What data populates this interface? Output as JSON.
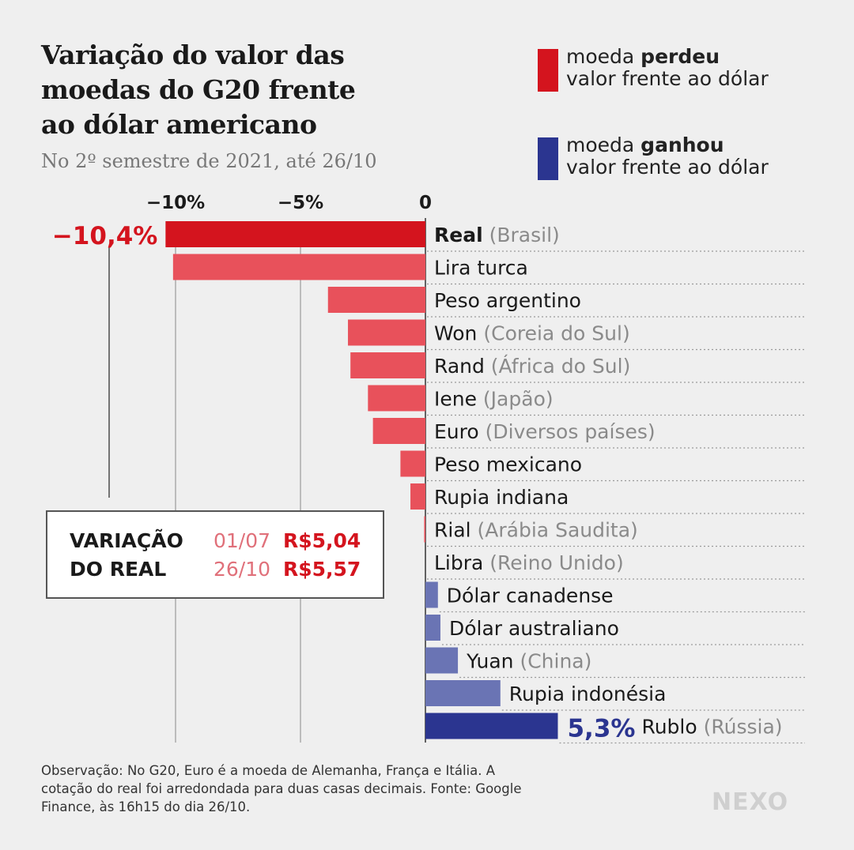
{
  "title_lines": [
    "Variação do valor das",
    "moedas do G20 frente",
    "ao dólar americano"
  ],
  "subtitle": "No 2º semestre de 2021, até 26/10",
  "legend": {
    "lost": {
      "prefix": "moeda ",
      "bold": "perdeu",
      "line2": "valor frente ao dólar",
      "color": "#d4141e"
    },
    "gained": {
      "prefix": "moeda ",
      "bold": "ganhou",
      "line2": "valor frente ao dólar",
      "color": "#2b3590"
    }
  },
  "callout": {
    "label_line1": "VARIAÇÃO",
    "label_line2": "DO REAL",
    "date1": "01/07",
    "price1": "R$5,04",
    "date2": "26/10",
    "price2": "R$5,57"
  },
  "note": "Observação: No G20, Euro é a moeda de Alemanha, França e Itália. A cotação do real foi arredondada para duas casas decimais. Fonte: Google Finance, às 16h15 do dia 26/10.",
  "logo": "NEXO",
  "colors": {
    "loss_strong": "#d4141e",
    "loss_light": "#e8515b",
    "gain_strong": "#2b3590",
    "gain_light": "#6a74b4"
  },
  "chart_data": {
    "type": "bar",
    "orientation": "horizontal",
    "xticks": [
      {
        "value": -10,
        "label": "−10%"
      },
      {
        "value": -5,
        "label": "−5%"
      },
      {
        "value": 0,
        "label": "0"
      }
    ],
    "categories": [
      {
        "name": "Real",
        "country": "(Brasil)",
        "value": -10.4,
        "bold": true,
        "value_label": "−10,4%"
      },
      {
        "name": "Lira turca",
        "country": "",
        "value": -10.1
      },
      {
        "name": "Peso argentino",
        "country": "",
        "value": -3.9
      },
      {
        "name": "Won",
        "country": "(Coreia do Sul)",
        "value": -3.1
      },
      {
        "name": "Rand",
        "country": "(África do Sul)",
        "value": -3.0
      },
      {
        "name": "Iene",
        "country": "(Japão)",
        "value": -2.3
      },
      {
        "name": "Euro",
        "country": "(Diversos países)",
        "value": -2.1
      },
      {
        "name": "Peso mexicano",
        "country": "",
        "value": -1.0
      },
      {
        "name": "Rupia indiana",
        "country": "",
        "value": -0.6
      },
      {
        "name": "Rial",
        "country": "(Arábia Saudita)",
        "value": -0.05
      },
      {
        "name": "Libra",
        "country": "(Reino Unido)",
        "value": 0.0
      },
      {
        "name": "Dólar canadense",
        "country": "",
        "value": 0.5
      },
      {
        "name": "Dólar australiano",
        "country": "",
        "value": 0.6
      },
      {
        "name": "Yuan",
        "country": "(China)",
        "value": 1.3
      },
      {
        "name": "Rupia indonésia",
        "country": "",
        "value": 3.0
      },
      {
        "name": "Rublo",
        "country": "(Rússia)",
        "value": 5.3,
        "value_label": "5,3%"
      }
    ]
  }
}
